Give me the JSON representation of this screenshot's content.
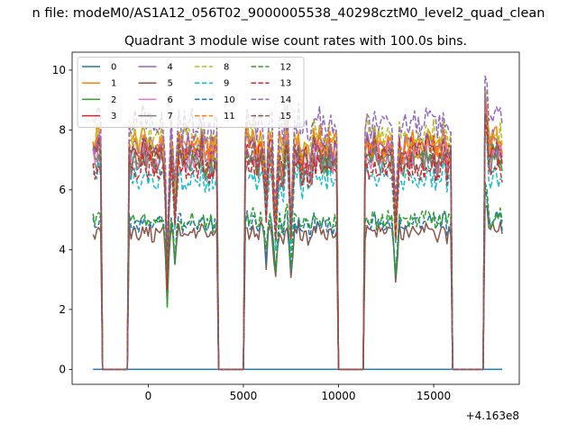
{
  "figure": {
    "suptitle": "n file: modeM0/AS1A12_056T02_9000005538_40298cztM0_level2_quad_clean",
    "title": "Quadrant 3 module wise count rates with 100.0s bins.",
    "x_offset_text": "+4.163e8"
  },
  "chart_data": {
    "type": "line",
    "title": "Quadrant 3 module wise count rates with 100.0s bins.",
    "xlabel": "",
    "ylabel": "",
    "xlim": [
      -4000,
      19500
    ],
    "ylim": [
      -0.5,
      10.6
    ],
    "x_offset": 416300000,
    "xticks": [
      0,
      5000,
      10000,
      15000
    ],
    "xtick_labels": [
      "0",
      "5000",
      "10000",
      "15000"
    ],
    "yticks": [
      0,
      2,
      4,
      6,
      8,
      10
    ],
    "ytick_labels": [
      "0",
      "2",
      "4",
      "6",
      "8",
      "10"
    ],
    "x_range": [
      -2900,
      18600
    ],
    "active_intervals": [
      [
        -2900,
        -2450
      ],
      [
        -1050,
        3680
      ],
      [
        5100,
        9930
      ],
      [
        11350,
        15950
      ],
      [
        17650,
        18600
      ]
    ],
    "legend": {
      "placement": "upper-left",
      "columns": 4
    },
    "series": [
      {
        "name": "0",
        "color": "#1f77b4",
        "style": "solid",
        "level": 0.0
      },
      {
        "name": "1",
        "color": "#ff7f0e",
        "style": "solid",
        "level": 7.6
      },
      {
        "name": "2",
        "color": "#2ca02c",
        "style": "solid",
        "level": 7.0
      },
      {
        "name": "3",
        "color": "#d62728",
        "style": "solid",
        "level": 7.3
      },
      {
        "name": "4",
        "color": "#9467bd",
        "style": "solid",
        "level": 7.5
      },
      {
        "name": "5",
        "color": "#8c564b",
        "style": "solid",
        "level": 4.6
      },
      {
        "name": "6",
        "color": "#e377c2",
        "style": "solid",
        "level": 7.1
      },
      {
        "name": "7",
        "color": "#7f7f7f",
        "style": "solid",
        "level": 6.9
      },
      {
        "name": "8",
        "color": "#bcbd22",
        "style": "dashed",
        "level": 7.8
      },
      {
        "name": "9",
        "color": "#17becf",
        "style": "dashed",
        "level": 6.4
      },
      {
        "name": "10",
        "color": "#1f77b4",
        "style": "dashed",
        "level": 4.9
      },
      {
        "name": "11",
        "color": "#ff7f0e",
        "style": "dashed",
        "level": 7.4
      },
      {
        "name": "12",
        "color": "#2ca02c",
        "style": "dashed",
        "level": 5.0
      },
      {
        "name": "13",
        "color": "#d62728",
        "style": "dashed",
        "level": 6.7
      },
      {
        "name": "14",
        "color": "#9467bd",
        "style": "dashed",
        "level": 8.2
      },
      {
        "name": "15",
        "color": "#8c564b",
        "style": "dashed",
        "level": 7.2
      }
    ]
  }
}
